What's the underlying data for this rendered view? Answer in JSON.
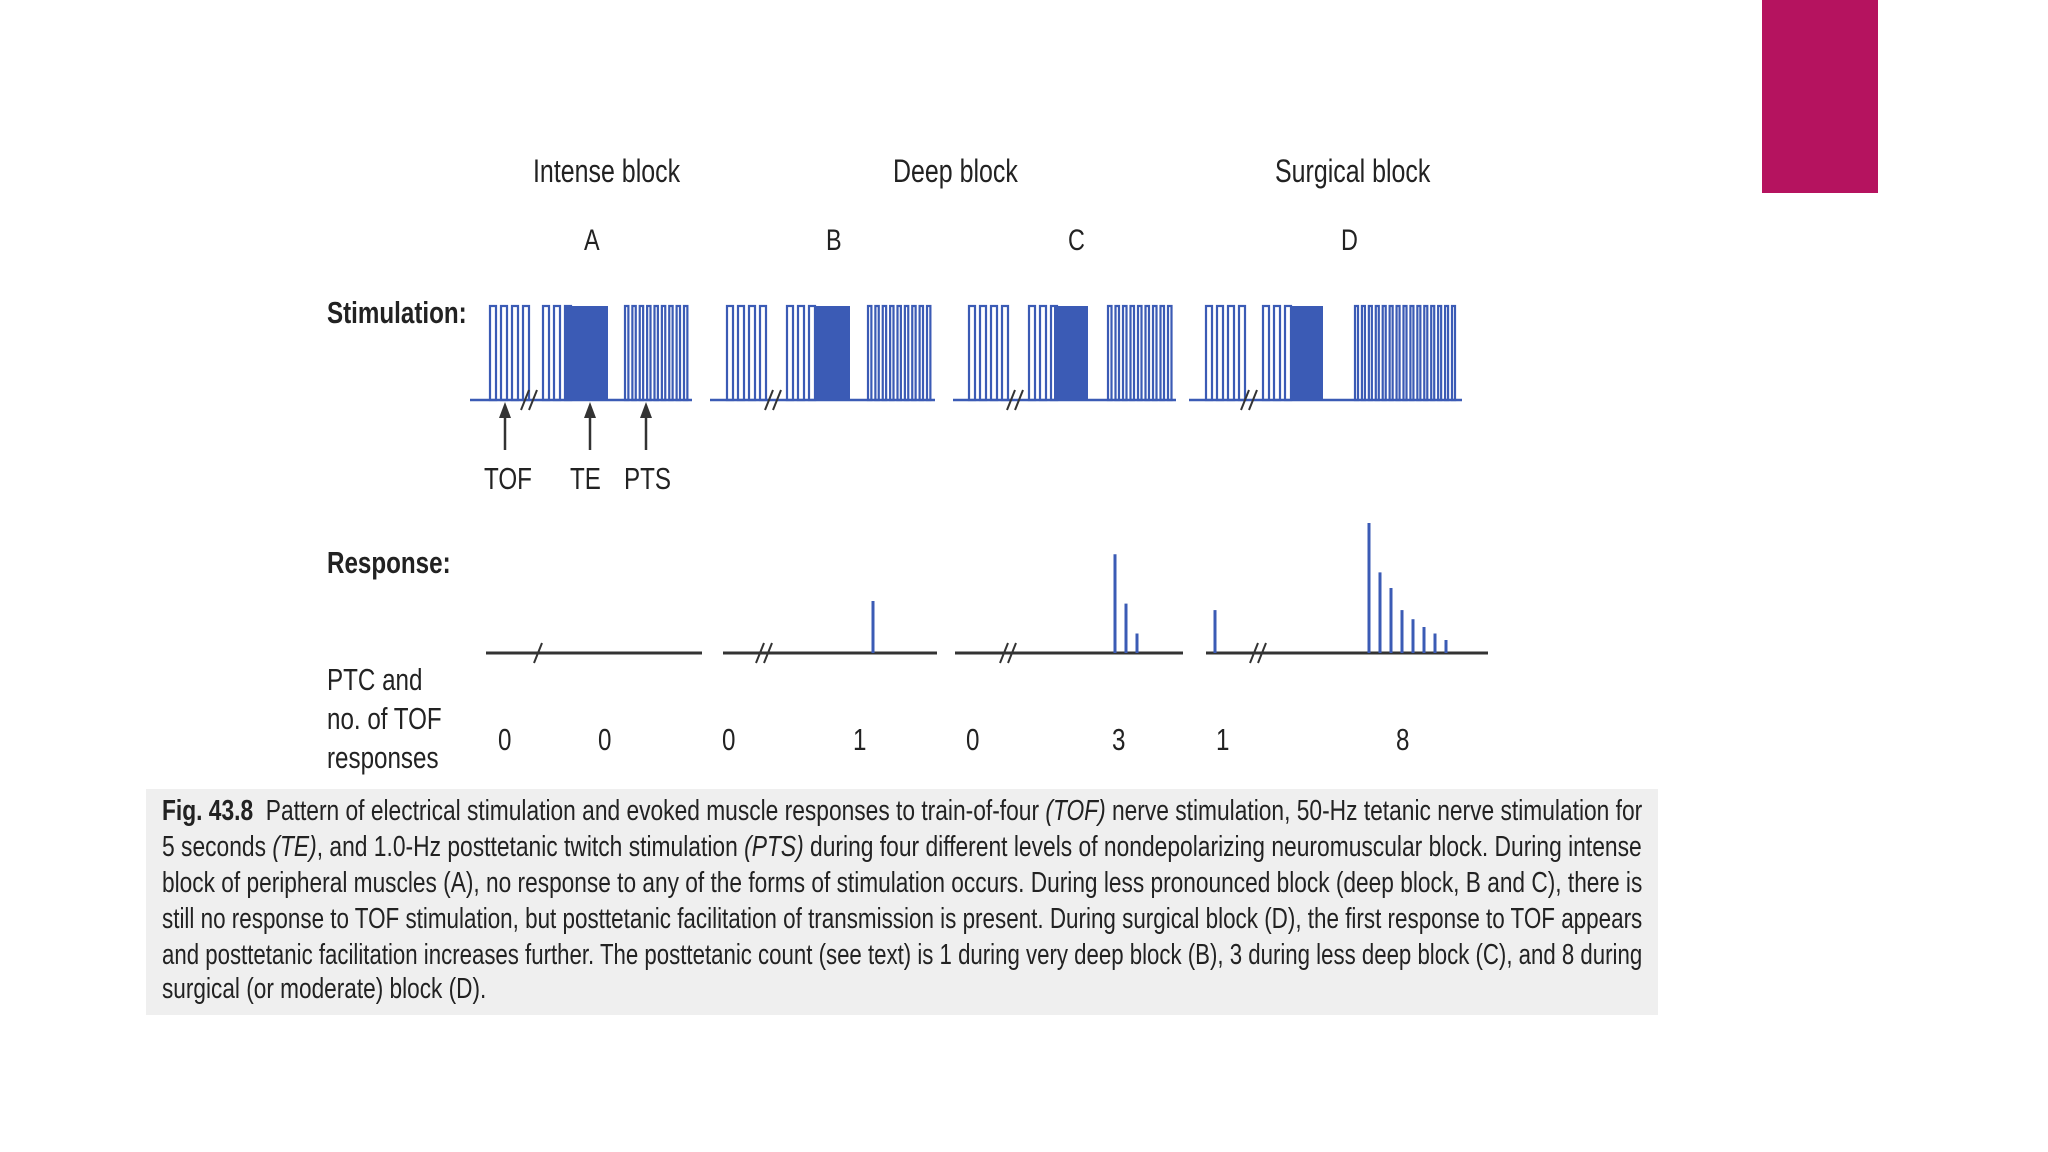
{
  "colors": {
    "accent": "#B5135F",
    "pulse": "#3B5BB5",
    "line": "#333333",
    "caption_bg": "#EFEFEF"
  },
  "headers": {
    "intense": "Intense block",
    "deep": "Deep block",
    "surgical": "Surgical block"
  },
  "letters": [
    "A",
    "B",
    "C",
    "D"
  ],
  "labels": {
    "stimulation": "Stimulation:",
    "response": "Response:"
  },
  "markers": {
    "tof": "TOF",
    "te": "TE",
    "pts": "PTS"
  },
  "ptc_label": [
    "PTC and",
    "no. of TOF",
    "responses"
  ],
  "counts": [
    "0",
    "0",
    "0",
    "1",
    "0",
    "3",
    "1",
    "8"
  ],
  "blocks": [
    {
      "letter": "A",
      "tof_responses": 0,
      "ptc": 0,
      "tof_response_heights": [],
      "ptc_response_heights": []
    },
    {
      "letter": "B",
      "tof_responses": 0,
      "ptc": 1,
      "tof_response_heights": [],
      "ptc_response_heights": [
        0.4
      ]
    },
    {
      "letter": "C",
      "tof_responses": 0,
      "ptc": 3,
      "tof_response_heights": [],
      "ptc_response_heights": [
        0.76,
        0.38,
        0.15
      ]
    },
    {
      "letter": "D",
      "tof_responses": 1,
      "ptc": 8,
      "tof_response_heights": [
        0.33
      ],
      "ptc_response_heights": [
        1.0,
        0.62,
        0.5,
        0.33,
        0.26,
        0.2,
        0.15,
        0.1
      ]
    }
  ],
  "caption": {
    "fig_label": "Fig. 43.8",
    "lines": [
      [
        "Pattern of electrical stimulation and evoked muscle responses to train-of-four ",
        "(TOF)",
        " nerve stimulation, 50-Hz tetanic nerve stimulation for"
      ],
      [
        "5 seconds ",
        "(TE)",
        ", and 1.0-Hz posttetanic twitch stimulation ",
        "(PTS)",
        " during four different levels of nondepolarizing neuromuscular block. During intense"
      ],
      [
        "block of peripheral muscles (A), no response to any of the forms of stimulation occurs. During less pronounced block (deep block, B and C), there is"
      ],
      [
        "still no response to TOF stimulation, but posttetanic facilitation of transmission is present. During surgical block (D), the first response to TOF appears"
      ],
      [
        "and posttetanic facilitation increases further. The posttetanic count (see text) is 1 during very deep block (B), 3 during less deep block (C), and 8 during"
      ],
      [
        "surgical (or moderate) block (D)."
      ]
    ]
  }
}
